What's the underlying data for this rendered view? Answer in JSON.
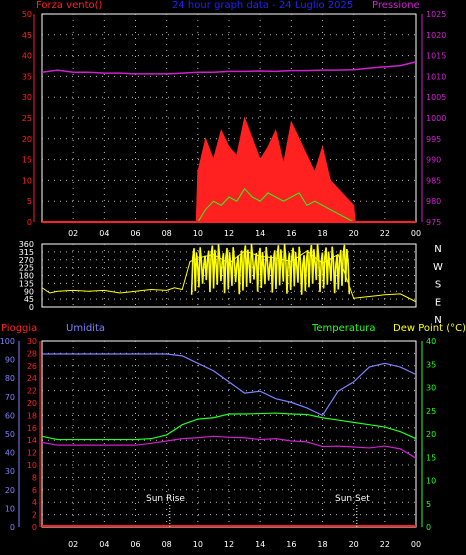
{
  "header": {
    "wind_label": "Forza vento()",
    "title": "24 hour graph data - 24 Luglio 2025",
    "pressure_label": "Pressione"
  },
  "labels": {
    "rain": "Pioggia",
    "humidity": "Umidita",
    "temperature": "Temperatura",
    "dewpoint": "Dew Point (°C)",
    "sunrise": "Sun Rise",
    "sunset": "Sun Set"
  },
  "colors": {
    "wind_axis": "#ff2020",
    "pressure": "#d020d0",
    "title": "#2020ff",
    "direction": "#ffff00",
    "humidity": "#8080ff",
    "temperature": "#20ff20",
    "rain": "#ff2020"
  },
  "chart_data": [
    {
      "type": "line",
      "name": "wind-and-pressure",
      "x_ticks": [
        "02",
        "04",
        "06",
        "08",
        "10",
        "12",
        "14",
        "16",
        "18",
        "20",
        "22",
        "00"
      ],
      "x_range": [
        0,
        24
      ],
      "left_axis": {
        "ylim": [
          0,
          50
        ],
        "ticks": [
          0,
          5,
          10,
          15,
          20,
          25,
          30,
          35,
          40,
          45,
          50
        ]
      },
      "right_axis": {
        "ylim": [
          975,
          1025
        ],
        "ticks": [
          975,
          980,
          985,
          990,
          995,
          1000,
          1005,
          1010,
          1015,
          1020,
          1025
        ]
      },
      "series": [
        {
          "name": "Pressione",
          "axis": "right",
          "x": [
            0,
            1,
            2,
            3,
            4,
            5,
            6,
            7,
            8,
            9,
            10,
            11,
            12,
            13,
            14,
            15,
            16,
            17,
            18,
            19,
            20,
            21,
            22,
            23,
            24
          ],
          "y": [
            1011,
            1011.5,
            1011,
            1011,
            1010.8,
            1010.8,
            1010.6,
            1010.6,
            1010.6,
            1010.8,
            1011,
            1011,
            1011.2,
            1011.2,
            1011.3,
            1011.2,
            1011.4,
            1011.4,
            1011.5,
            1011.5,
            1011.6,
            1012,
            1012.3,
            1012.6,
            1013.5
          ]
        },
        {
          "name": "Forza vento()",
          "axis": "left",
          "x": [
            0,
            4,
            9.9,
            10,
            10.5,
            11,
            11.5,
            12,
            12.5,
            13,
            13.5,
            14,
            14.5,
            15,
            15.5,
            16,
            16.5,
            17,
            17.5,
            18,
            18.5,
            19,
            19.5,
            20,
            20.1,
            24
          ],
          "y": [
            0,
            0,
            0,
            12,
            20,
            15,
            22,
            18,
            16,
            25,
            20,
            15,
            18,
            22,
            14,
            24,
            20,
            16,
            12,
            18,
            10,
            8,
            6,
            4,
            0,
            0
          ]
        },
        {
          "name": "gust-green",
          "axis": "left",
          "x": [
            0,
            10,
            10.5,
            11,
            11.5,
            12,
            12.5,
            13,
            13.5,
            14,
            14.5,
            15,
            15.5,
            16,
            16.5,
            17,
            17.5,
            18,
            18.5,
            19,
            19.5,
            20,
            24
          ],
          "y": [
            0,
            0,
            3,
            5,
            4,
            6,
            5,
            8,
            6,
            5,
            7,
            6,
            5,
            6,
            7,
            4,
            5,
            4,
            3,
            2,
            1,
            0,
            0
          ]
        }
      ]
    },
    {
      "type": "line",
      "name": "wind-direction",
      "x_range": [
        0,
        24
      ],
      "left_axis": {
        "ylim": [
          0,
          360
        ],
        "ticks": [
          0,
          45,
          90,
          135,
          180,
          225,
          270,
          315,
          360
        ]
      },
      "right_labels": [
        "N",
        "W",
        "S",
        "E",
        "N"
      ],
      "series": [
        {
          "name": "direction",
          "x": [
            0,
            0.5,
            1,
            2,
            3,
            4,
            5,
            6,
            7,
            8,
            8.5,
            9,
            9.5,
            10,
            11,
            12,
            13,
            14,
            15,
            16,
            17,
            18,
            19,
            20,
            21,
            22,
            23,
            24
          ],
          "y": [
            110,
            80,
            90,
            95,
            90,
            95,
            80,
            90,
            100,
            95,
            110,
            100,
            260,
            280,
            300,
            250,
            320,
            290,
            280,
            260,
            320,
            250,
            300,
            50,
            60,
            70,
            75,
            30
          ]
        }
      ]
    },
    {
      "type": "line",
      "name": "humidity-temperature",
      "x_ticks": [
        "02",
        "04",
        "06",
        "08",
        "10",
        "12",
        "14",
        "16",
        "18",
        "20",
        "22",
        "00"
      ],
      "x_range": [
        0,
        24
      ],
      "rain_axis": {
        "ylim": [
          0,
          30
        ],
        "ticks": [
          0,
          2,
          4,
          6,
          8,
          10,
          12,
          14,
          16,
          18,
          20,
          22,
          24,
          26,
          28,
          30
        ]
      },
      "humidity_axis": {
        "ylim": [
          0,
          100
        ],
        "ticks": [
          0,
          10,
          20,
          30,
          40,
          50,
          60,
          70,
          80,
          90,
          100
        ]
      },
      "temperature_axis": {
        "ylim": [
          0,
          40
        ],
        "ticks": [
          0,
          5,
          10,
          15,
          20,
          25,
          30,
          35,
          40
        ]
      },
      "series": [
        {
          "name": "Umidita",
          "axis": "humidity",
          "x": [
            0,
            1,
            2,
            3,
            4,
            5,
            6,
            7,
            8,
            9,
            10,
            11,
            12,
            13,
            14,
            15,
            16,
            17,
            18,
            19,
            20,
            21,
            22,
            23,
            24
          ],
          "y": [
            93,
            93,
            93,
            93,
            93,
            93,
            93,
            93,
            93,
            92,
            88,
            84,
            78,
            72,
            73,
            69,
            67,
            64,
            60,
            73,
            78,
            86,
            88,
            86,
            82
          ]
        },
        {
          "name": "Temperatura",
          "axis": "temperature",
          "x": [
            0,
            1,
            2,
            3,
            4,
            5,
            6,
            7,
            8,
            9,
            10,
            11,
            12,
            13,
            14,
            15,
            16,
            17,
            18,
            19,
            20,
            21,
            22,
            23,
            24
          ],
          "y": [
            19.5,
            18.8,
            18.8,
            18.8,
            18.8,
            18.8,
            18.8,
            19,
            19.8,
            22,
            23.2,
            23.5,
            24.3,
            24.3,
            24.4,
            24.5,
            24.3,
            24.2,
            23.5,
            23,
            22.5,
            22,
            21.5,
            20.5,
            19
          ]
        },
        {
          "name": "Dew Point",
          "axis": "temperature",
          "x": [
            0,
            1,
            2,
            3,
            4,
            5,
            6,
            7,
            8,
            9,
            10,
            11,
            12,
            13,
            14,
            15,
            16,
            17,
            18,
            19,
            20,
            21,
            22,
            23,
            24
          ],
          "y": [
            18.2,
            17.6,
            17.6,
            17.6,
            17.6,
            17.6,
            17.6,
            18,
            18.5,
            19,
            19.2,
            19.5,
            19.3,
            19.2,
            18.8,
            19,
            18.5,
            18.3,
            17.3,
            17.4,
            17.2,
            17,
            17.4,
            16.8,
            14.8
          ]
        },
        {
          "name": "Pioggia",
          "axis": "rain",
          "x": [
            0,
            24
          ],
          "y": [
            0,
            0
          ]
        }
      ]
    }
  ]
}
